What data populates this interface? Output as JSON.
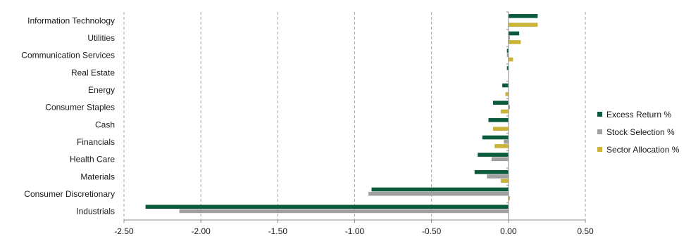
{
  "chart_data": {
    "type": "bar",
    "orientation": "horizontal",
    "categories": [
      "Information Technology",
      "Utilities",
      "Communication Services",
      "Real Estate",
      "Energy",
      "Consumer Staples",
      "Cash",
      "Financials",
      "Health Care",
      "Materials",
      "Consumer Discretionary",
      "Industrials"
    ],
    "series": [
      {
        "name": "Excess Return %",
        "color": "#0b5a3c",
        "values": [
          0.19,
          0.07,
          -0.01,
          -0.01,
          -0.04,
          -0.1,
          -0.13,
          -0.17,
          -0.2,
          -0.22,
          -0.89,
          -2.36
        ]
      },
      {
        "name": "Stock Selection %",
        "color": "#a0a0a0",
        "values": [
          0.0,
          0.01,
          -0.01,
          0.0,
          0.0,
          0.01,
          0.0,
          -0.03,
          -0.11,
          -0.14,
          -0.91,
          -2.14
        ]
      },
      {
        "name": "Sector Allocation %",
        "color": "#c9b33a",
        "values": [
          0.19,
          0.08,
          0.03,
          0.0,
          -0.02,
          -0.05,
          -0.1,
          -0.09,
          0.0,
          -0.05,
          0.01,
          0.0
        ]
      }
    ],
    "xlim": [
      -2.5,
      0.5
    ],
    "xticks": [
      "-2.50",
      "-2.00",
      "-1.50",
      "-1.00",
      "-0.50",
      "0.00",
      "0.50"
    ],
    "xtick_values": [
      -2.5,
      -2.0,
      -1.5,
      -1.0,
      -0.5,
      0.0,
      0.5
    ],
    "grid": "vertical dashed",
    "legend_position": "right"
  }
}
